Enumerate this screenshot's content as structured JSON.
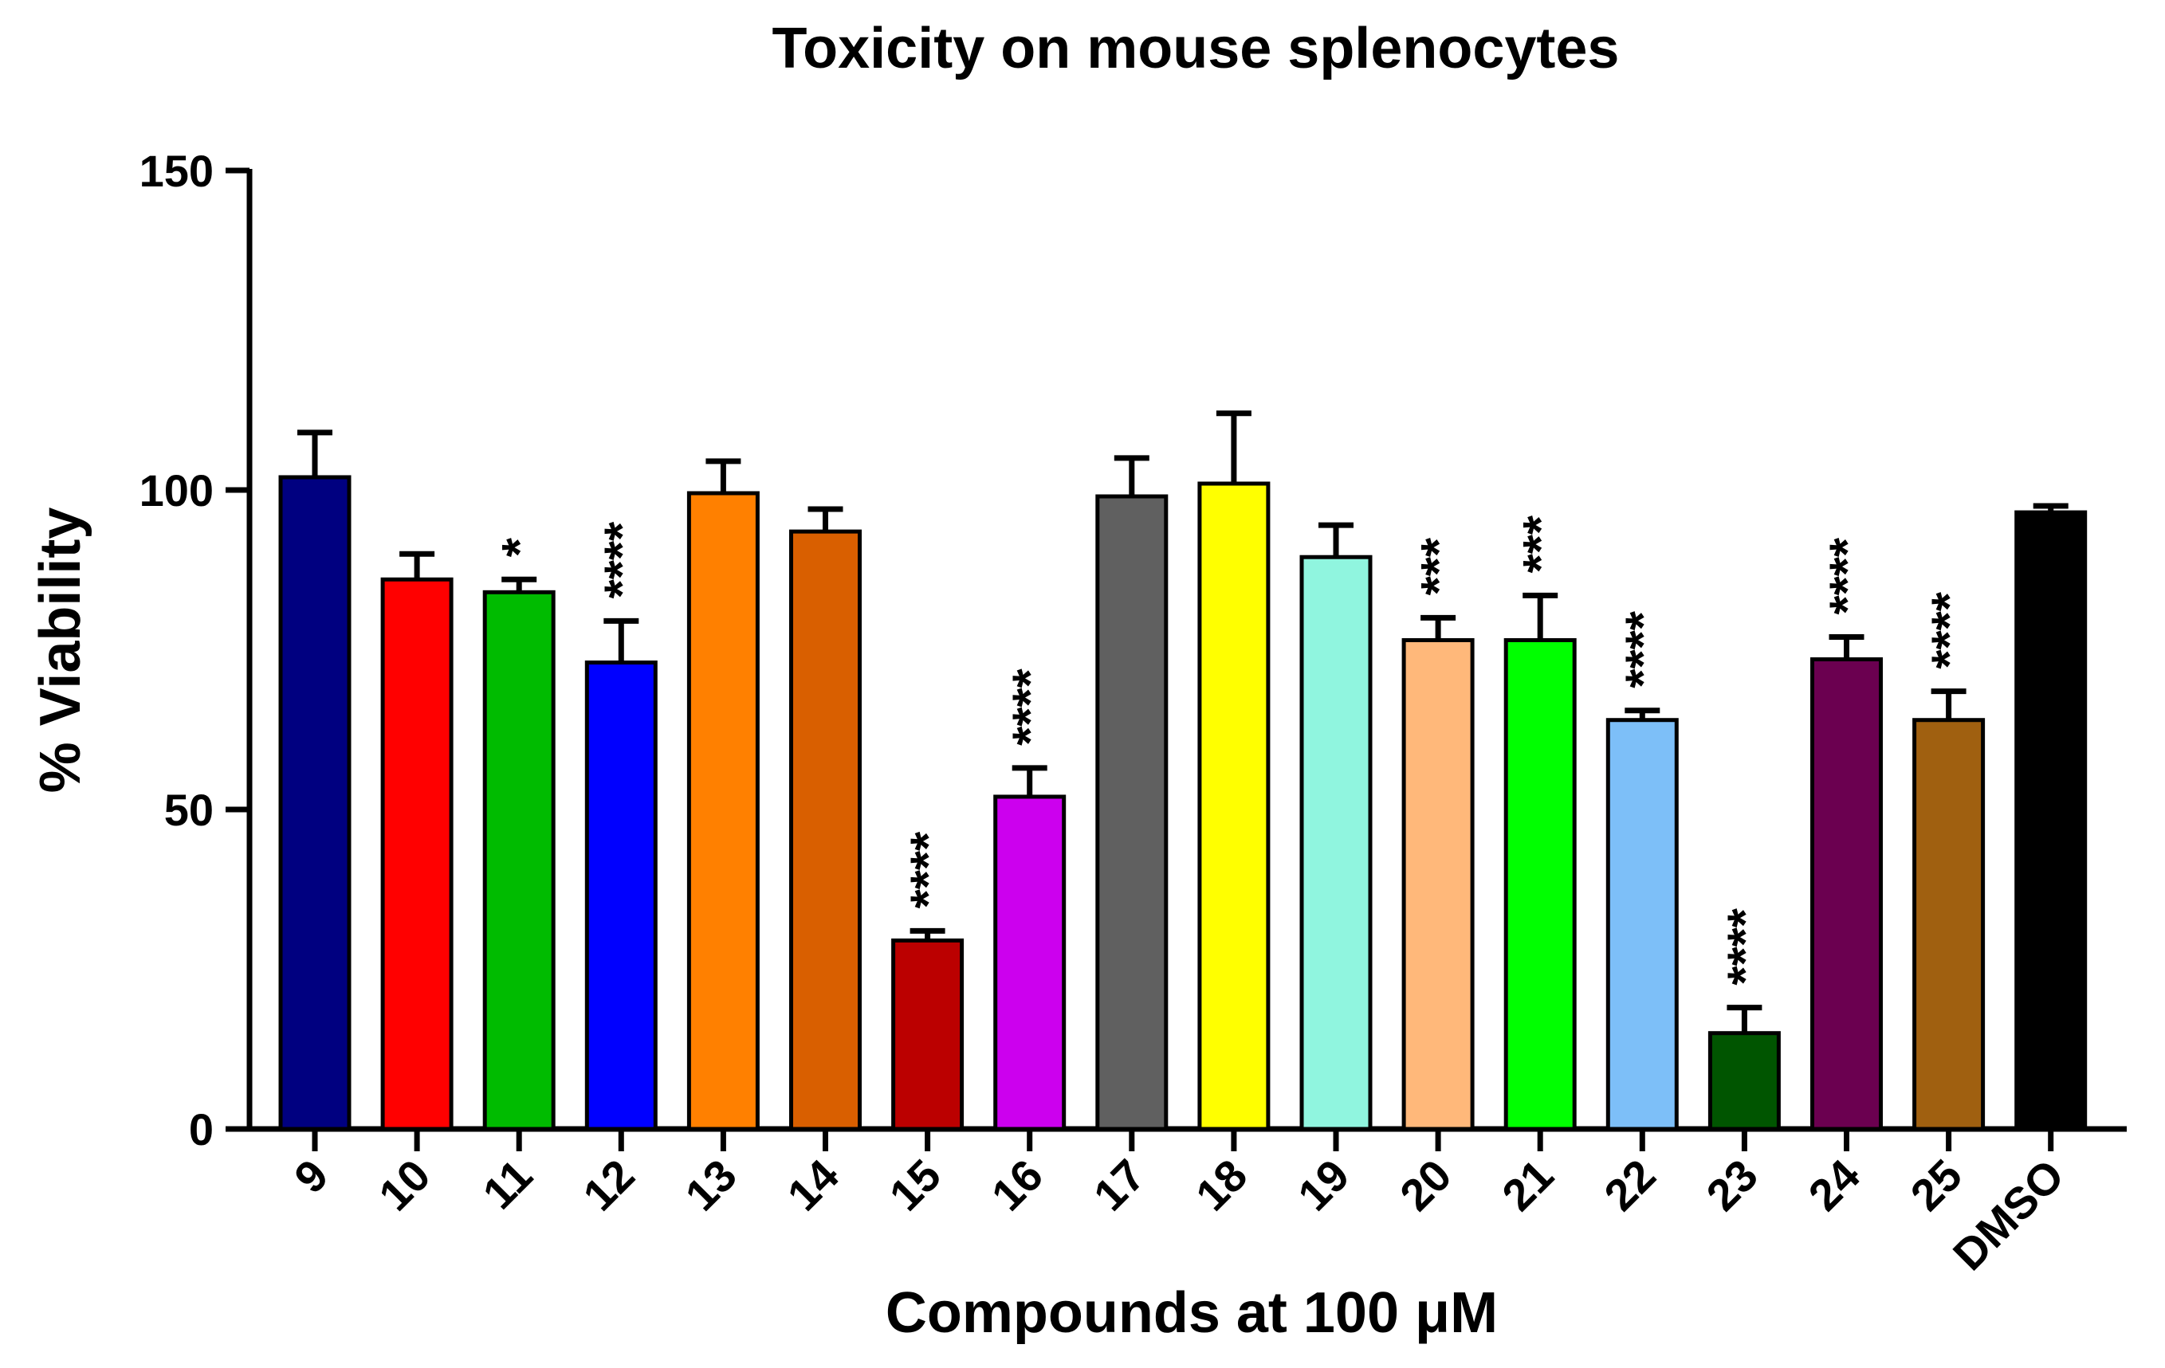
{
  "chart_data": {
    "type": "bar",
    "title": "Toxicity on mouse splenocytes",
    "xlabel": "Compounds at 100 μM",
    "ylabel": "% Viability",
    "ylim": [
      0,
      150
    ],
    "yticks": [
      "0",
      "50",
      "100",
      "150"
    ],
    "categories": [
      "9",
      "10",
      "11",
      "12",
      "13",
      "14",
      "15",
      "16",
      "17",
      "18",
      "19",
      "20",
      "21",
      "22",
      "23",
      "24",
      "25",
      "DMSO"
    ],
    "values": [
      102,
      86,
      84,
      73,
      99.5,
      93.5,
      29.5,
      52,
      99,
      101,
      89.5,
      76.5,
      76.5,
      64,
      15,
      73.5,
      64,
      96.5
    ],
    "errors": [
      7,
      4,
      2,
      6.5,
      5,
      3.5,
      1.5,
      4.5,
      6,
      11,
      5,
      3.5,
      7,
      1.5,
      4,
      3.5,
      4.5,
      1
    ],
    "significance": [
      "",
      "",
      "*",
      "****",
      "",
      "",
      "****",
      "****",
      "",
      "",
      "",
      "***",
      "***",
      "****",
      "****",
      "****",
      "****",
      ""
    ],
    "colors": [
      "#000080",
      "#FF0000",
      "#00BB00",
      "#0000FF",
      "#FF8000",
      "#D95F00",
      "#BB0000",
      "#CC00EE",
      "#606060",
      "#FFFF00",
      "#90F5DF",
      "#FFB87A",
      "#00FF00",
      "#7DBFF8",
      "#005500",
      "#6B0050",
      "#A06010",
      "#000000"
    ]
  }
}
